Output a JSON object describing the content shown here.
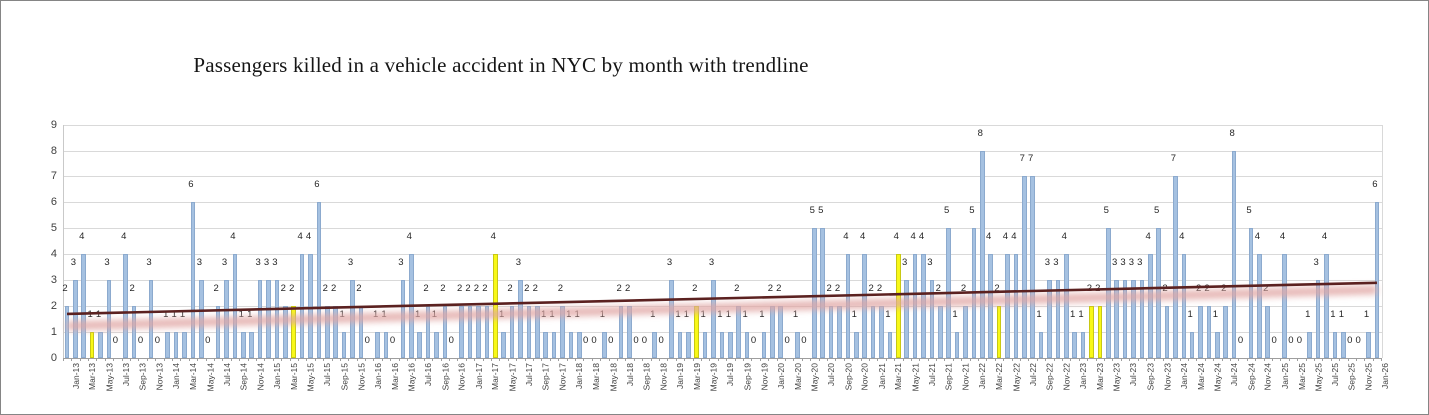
{
  "title": "Passengers killed in a vehicle accident in NYC by month with trendline",
  "y_axis": {
    "min": 0,
    "max": 9,
    "tick_labels": [
      "0",
      "1",
      "2",
      "3",
      "4",
      "5",
      "6",
      "7",
      "8",
      "9"
    ]
  },
  "chart_data": {
    "type": "bar",
    "title": "Passengers killed in a vehicle accident in NYC by month with trendline",
    "xlabel": "",
    "ylabel": "",
    "ylim": [
      0,
      9
    ],
    "grid": true,
    "x_tick_step": 2,
    "bar_color": "#a5c1e1",
    "highlight_color": "#f8f818",
    "x": [
      "Jan-13",
      "Feb-13",
      "Mar-13",
      "Apr-13",
      "May-13",
      "Jun-13",
      "Jul-13",
      "Aug-13",
      "Sep-13",
      "Oct-13",
      "Nov-13",
      "Dec-13",
      "Jan-14",
      "Feb-14",
      "Mar-14",
      "Apr-14",
      "May-14",
      "Jun-14",
      "Jul-14",
      "Aug-14",
      "Sep-14",
      "Oct-14",
      "Nov-14",
      "Dec-14",
      "Jan-15",
      "Feb-15",
      "Mar-15",
      "Apr-15",
      "May-15",
      "Jun-15",
      "Jul-15",
      "Aug-15",
      "Sep-15",
      "Oct-15",
      "Nov-15",
      "Dec-15",
      "Jan-16",
      "Feb-16",
      "Mar-16",
      "Apr-16",
      "May-16",
      "Jun-16",
      "Jul-16",
      "Aug-16",
      "Sep-16",
      "Oct-16",
      "Nov-16",
      "Dec-16",
      "Jan-17",
      "Feb-17",
      "Mar-17",
      "Apr-17",
      "May-17",
      "Jun-17",
      "Jul-17",
      "Aug-17",
      "Sep-17",
      "Oct-17",
      "Nov-17",
      "Dec-17",
      "Jan-18",
      "Feb-18",
      "Mar-18",
      "Apr-18",
      "May-18",
      "Jun-18",
      "Jul-18",
      "Aug-18",
      "Sep-18",
      "Oct-18",
      "Nov-18",
      "Dec-18",
      "Jan-19",
      "Feb-19",
      "Mar-19",
      "Apr-19",
      "May-19",
      "Jun-19",
      "Jul-19",
      "Aug-19",
      "Sep-19",
      "Oct-19",
      "Nov-19",
      "Dec-19",
      "Jan-20",
      "Feb-20",
      "Mar-20",
      "Apr-20",
      "May-20",
      "Jun-20",
      "Jul-20",
      "Aug-20",
      "Sep-20",
      "Oct-20",
      "Nov-20",
      "Dec-20",
      "Jan-21",
      "Feb-21",
      "Mar-21",
      "Apr-21",
      "May-21",
      "Jun-21",
      "Jul-21",
      "Aug-21",
      "Sep-21",
      "Oct-21",
      "Nov-21",
      "Dec-21",
      "Jan-22",
      "Feb-22",
      "Mar-22",
      "Apr-22",
      "May-22",
      "Jun-22",
      "Jul-22",
      "Aug-22",
      "Sep-22",
      "Oct-22",
      "Nov-22",
      "Dec-22",
      "Jan-23",
      "Feb-23",
      "Mar-23",
      "Apr-23",
      "May-23",
      "Jun-23",
      "Jul-23",
      "Aug-23",
      "Sep-23",
      "Oct-23",
      "Nov-23",
      "Dec-23",
      "Jan-24",
      "Feb-24",
      "Mar-24",
      "Apr-24",
      "May-24",
      "Jun-24",
      "Jul-24",
      "Aug-24",
      "Sep-24",
      "Oct-24",
      "Nov-24",
      "Dec-24",
      "Jan-25",
      "Feb-25",
      "Mar-25",
      "Apr-25",
      "May-25",
      "Jun-25",
      "Jul-25",
      "Aug-25",
      "Sep-25",
      "Oct-25",
      "Nov-25",
      "Dec-25",
      "Jan-26"
    ],
    "values": [
      2,
      3,
      4,
      1,
      1,
      3,
      0,
      4,
      2,
      0,
      3,
      0,
      1,
      1,
      1,
      6,
      3,
      0,
      2,
      3,
      4,
      1,
      1,
      3,
      3,
      3,
      2,
      2,
      4,
      4,
      6,
      2,
      2,
      1,
      3,
      2,
      0,
      1,
      1,
      0,
      3,
      4,
      1,
      2,
      1,
      2,
      0,
      2,
      2,
      2,
      2,
      4,
      1,
      2,
      3,
      2,
      2,
      1,
      1,
      2,
      1,
      1,
      0,
      0,
      1,
      0,
      2,
      2,
      0,
      0,
      1,
      0,
      3,
      1,
      1,
      2,
      1,
      3,
      1,
      1,
      2,
      1,
      0,
      1,
      2,
      2,
      0,
      1,
      0,
      5,
      5,
      2,
      2,
      4,
      1,
      4,
      2,
      2,
      1,
      4,
      3,
      4,
      4,
      3,
      2,
      5,
      1,
      2,
      5,
      8,
      4,
      2,
      4,
      4,
      7,
      7,
      1,
      3,
      3,
      4,
      1,
      1,
      2,
      2,
      5,
      3,
      3,
      3,
      3,
      4,
      5,
      2,
      7,
      4,
      1,
      2,
      2,
      1,
      2,
      8,
      0,
      5,
      4,
      2,
      0,
      4,
      0,
      0,
      1,
      3,
      4,
      1,
      1,
      0,
      0,
      1,
      6
    ],
    "highlighted_months": [
      "Apr-13",
      "Apr-15",
      "Apr-17",
      "Apr-19",
      "Apr-21",
      "Apr-22",
      "Mar-23",
      "Apr-23"
    ],
    "legend_position": "none",
    "trendline": {
      "type": "linear",
      "start_value": 1.7,
      "end_value": 2.9,
      "color": "#5b2120",
      "glow_color": "#e0a5a3"
    }
  }
}
